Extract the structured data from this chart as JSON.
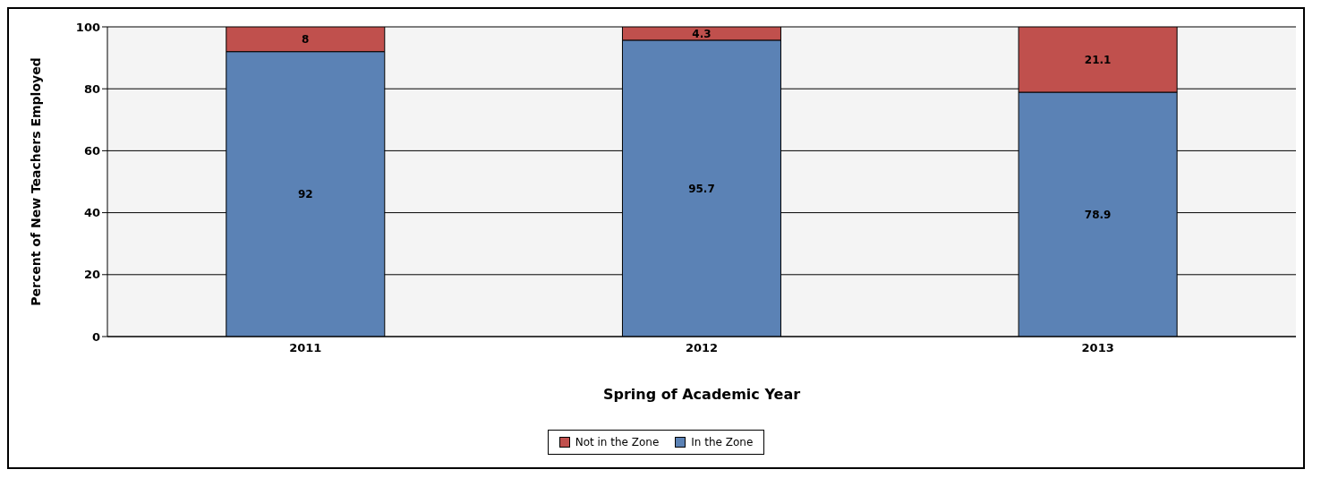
{
  "chart_data": {
    "type": "bar",
    "xlabel": "Spring of Academic Year",
    "ylabel": "Percent of New Teachers Employed",
    "categories": [
      "2011",
      "2012",
      "2013"
    ],
    "series": [
      {
        "name": "In the Zone",
        "color": "#5b82b5",
        "values": [
          92,
          95.7,
          78.9
        ]
      },
      {
        "name": "Not in the Zone",
        "color": "#c0504d",
        "values": [
          8,
          4.3,
          21.1
        ]
      }
    ],
    "stacked": true,
    "data_labels": true,
    "ylim": [
      0,
      100
    ],
    "yticks": [
      0,
      20,
      40,
      60,
      80,
      100
    ],
    "grid": "y",
    "legend": "bottom"
  }
}
